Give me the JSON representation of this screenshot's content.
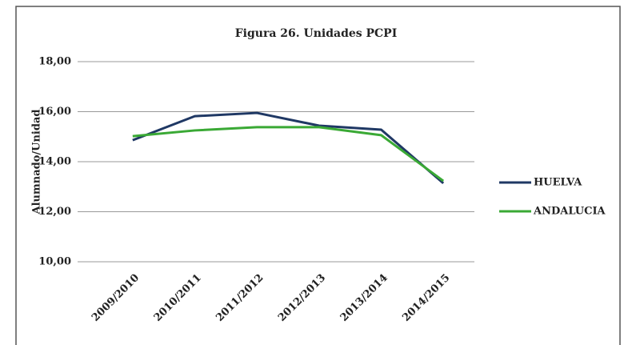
{
  "chart_data": {
    "type": "line",
    "title": "Figura 26. Unidades PCPI",
    "ylabel": "Alumnado/Unidad",
    "categories": [
      "2009/2010",
      "2010/2011",
      "2011/2012",
      "2012/2013",
      "2013/2014",
      "2014/2015"
    ],
    "series": [
      {
        "name": "HUELVA",
        "color": "#1f3864",
        "values": [
          14.86,
          15.82,
          15.95,
          15.44,
          15.28,
          13.14
        ]
      },
      {
        "name": "ANDALUCIA",
        "color": "#3aa935",
        "values": [
          15.02,
          15.25,
          15.38,
          15.38,
          15.06,
          13.23
        ]
      }
    ],
    "ylim": [
      10,
      18
    ],
    "yticks": [
      {
        "value": 10,
        "label": "10,00"
      },
      {
        "value": 12,
        "label": "12,00"
      },
      {
        "value": 14,
        "label": "14,00"
      },
      {
        "value": 16,
        "label": "16,00"
      },
      {
        "value": 18,
        "label": "18,00"
      }
    ],
    "grid": true,
    "legend": "right"
  }
}
